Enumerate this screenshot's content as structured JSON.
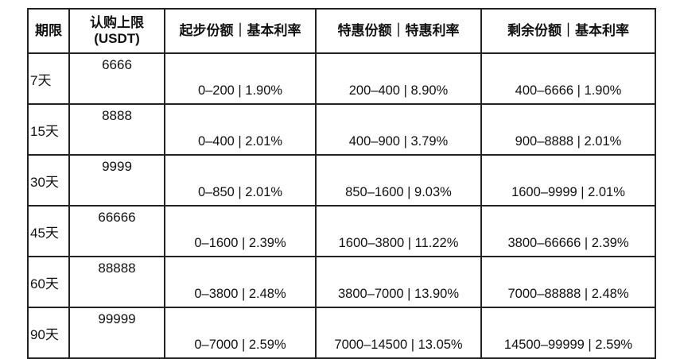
{
  "headers": [
    "期限",
    "认购上限\n(USDT)",
    "起步份额｜基本利率",
    "特惠份额｜特惠利率",
    "剩余份额｜基本利率"
  ],
  "header_limit_line1": "认购上限",
  "header_limit_line2": "(USDT)",
  "rows": [
    {
      "period": "7天",
      "limit": "6666",
      "start": "0–200 | 1.90%",
      "special": "200–400 | 8.90%",
      "rest": "400–6666 | 1.90%"
    },
    {
      "period": "15天",
      "limit": "8888",
      "start": "0–400 | 2.01%",
      "special": "400–900 | 3.79%",
      "rest": "900–8888 | 2.01%"
    },
    {
      "period": "30天",
      "limit": "9999",
      "start": "0–850 | 2.01%",
      "special": "850–1600 | 9.03%",
      "rest": "1600–9999 | 2.01%"
    },
    {
      "period": "45天",
      "limit": "66666",
      "start": "0–1600 | 2.39%",
      "special": "1600–3800 | 11.22%",
      "rest": "3800–66666 | 2.39%"
    },
    {
      "period": "60天",
      "limit": "88888",
      "start": "0–3800 | 2.48%",
      "special": "3800–7000 | 13.90%",
      "rest": "7000–88888 | 2.48%"
    },
    {
      "period": "90天",
      "limit": "99999",
      "start": "0–7000 | 2.59%",
      "special": "7000–14500 | 13.05%",
      "rest": "14500–99999 | 2.59%"
    }
  ]
}
